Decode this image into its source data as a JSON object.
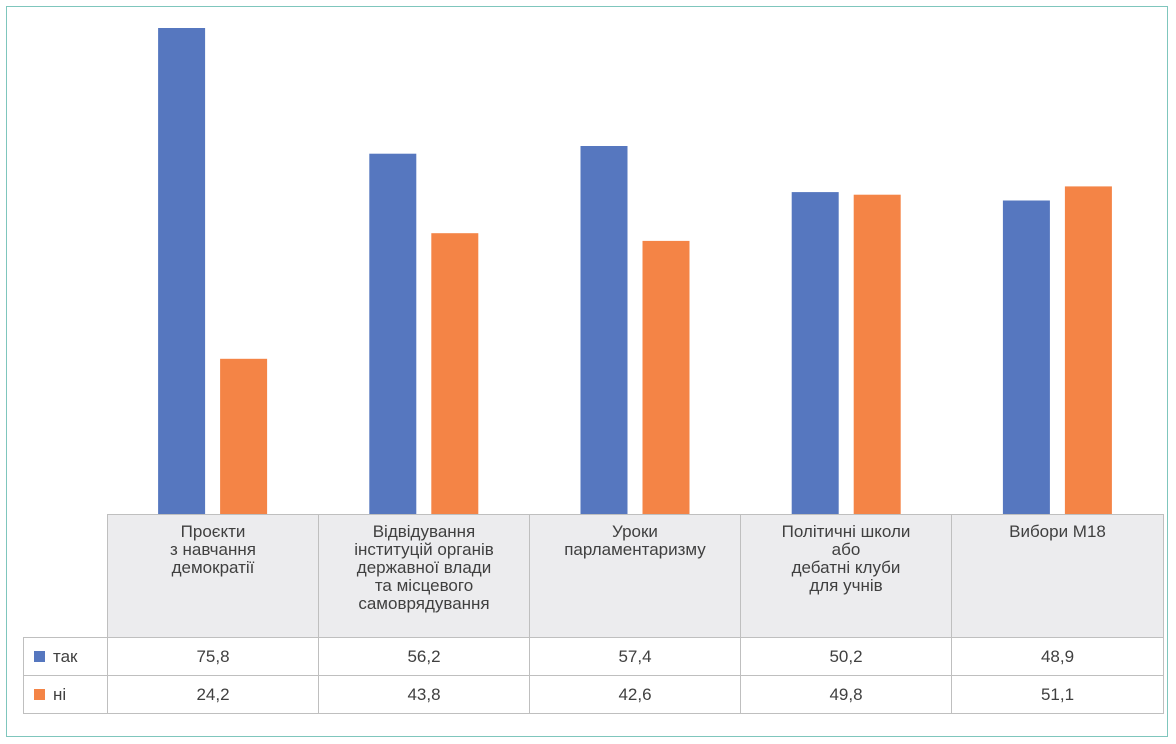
{
  "chart_data": {
    "type": "bar",
    "categories": [
      [
        "Проєкти",
        "з навчання",
        "демократії"
      ],
      [
        "Відвідування",
        "інституцій органів",
        "державної влади",
        "та місцевого",
        "самоврядування"
      ],
      [
        "Уроки",
        "парламентаризму"
      ],
      [
        "Політичні школи",
        "або",
        "дебатні клуби",
        "для учнів"
      ],
      [
        "Вибори М18"
      ]
    ],
    "series": [
      {
        "name": "так",
        "color": "#5677bf",
        "values": [
          75.8,
          56.2,
          57.4,
          50.2,
          48.9
        ],
        "labels": [
          "75,8",
          "56,2",
          "57,4",
          "50,2",
          "48,9"
        ]
      },
      {
        "name": "ні",
        "color": "#f48446",
        "values": [
          24.2,
          43.8,
          42.6,
          49.8,
          51.1
        ],
        "labels": [
          "24,2",
          "43,8",
          "42,6",
          "49,8",
          "51,1"
        ]
      }
    ],
    "legend": "data-table",
    "grid": false
  }
}
